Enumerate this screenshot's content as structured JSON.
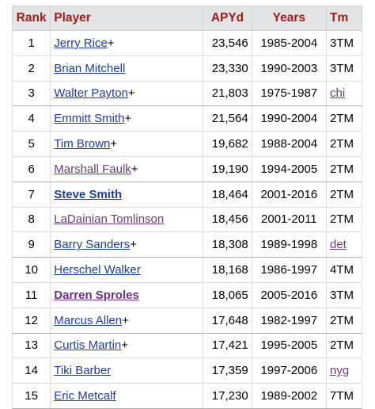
{
  "table": {
    "headers": {
      "rank": "Rank",
      "player": "Player",
      "apyd": "APYd",
      "years": "Years",
      "tm": "Tm"
    },
    "rows": [
      {
        "rank": "1",
        "player": "Jerry Rice",
        "hof": "+",
        "apyd": "23,546",
        "years": "1985-2004",
        "tm": "3TM",
        "tm_link": false
      },
      {
        "rank": "2",
        "player": "Brian Mitchell",
        "hof": "",
        "apyd": "23,330",
        "years": "1990-2003",
        "tm": "3TM",
        "tm_link": false
      },
      {
        "rank": "3",
        "player": "Walter Payton",
        "hof": "+",
        "apyd": "21,803",
        "years": "1975-1987",
        "tm": "chi",
        "tm_link": true
      },
      {
        "rank": "4",
        "player": "Emmitt Smith",
        "hof": "+",
        "apyd": "21,564",
        "years": "1990-2004",
        "tm": "2TM",
        "tm_link": false
      },
      {
        "rank": "5",
        "player": "Tim Brown",
        "hof": "+",
        "apyd": "19,682",
        "years": "1988-2004",
        "tm": "2TM",
        "tm_link": false
      },
      {
        "rank": "6",
        "player": "Marshall Faulk",
        "hof": "+",
        "apyd": "19,190",
        "years": "1994-2005",
        "tm": "2TM",
        "tm_link": false
      },
      {
        "rank": "7",
        "player": "Steve Smith",
        "hof": "",
        "apyd": "18,464",
        "years": "2001-2016",
        "tm": "2TM",
        "tm_link": false
      },
      {
        "rank": "8",
        "player": "LaDainian Tomlinson",
        "hof": "",
        "apyd": "18,456",
        "years": "2001-2011",
        "tm": "2TM",
        "tm_link": false
      },
      {
        "rank": "9",
        "player": "Barry Sanders",
        "hof": "+",
        "apyd": "18,308",
        "years": "1989-1998",
        "tm": "det",
        "tm_link": true
      },
      {
        "rank": "10",
        "player": "Herschel Walker",
        "hof": "",
        "apyd": "18,168",
        "years": "1986-1997",
        "tm": "4TM",
        "tm_link": false
      },
      {
        "rank": "11",
        "player": "Darren Sproles",
        "hof": "",
        "apyd": "18,065",
        "years": "2005-2016",
        "tm": "3TM",
        "tm_link": false
      },
      {
        "rank": "12",
        "player": "Marcus Allen",
        "hof": "+",
        "apyd": "17,648",
        "years": "1982-1997",
        "tm": "2TM",
        "tm_link": false
      },
      {
        "rank": "13",
        "player": "Curtis Martin",
        "hof": "+",
        "apyd": "17,421",
        "years": "1995-2005",
        "tm": "2TM",
        "tm_link": false
      },
      {
        "rank": "14",
        "player": "Tiki Barber",
        "hof": "",
        "apyd": "17,359",
        "years": "1997-2006",
        "tm": "nyg",
        "tm_link": true
      },
      {
        "rank": "15",
        "player": "Eric Metcalf",
        "hof": "",
        "apyd": "17,230",
        "years": "1989-2002",
        "tm": "7TM",
        "tm_link": false
      }
    ]
  }
}
